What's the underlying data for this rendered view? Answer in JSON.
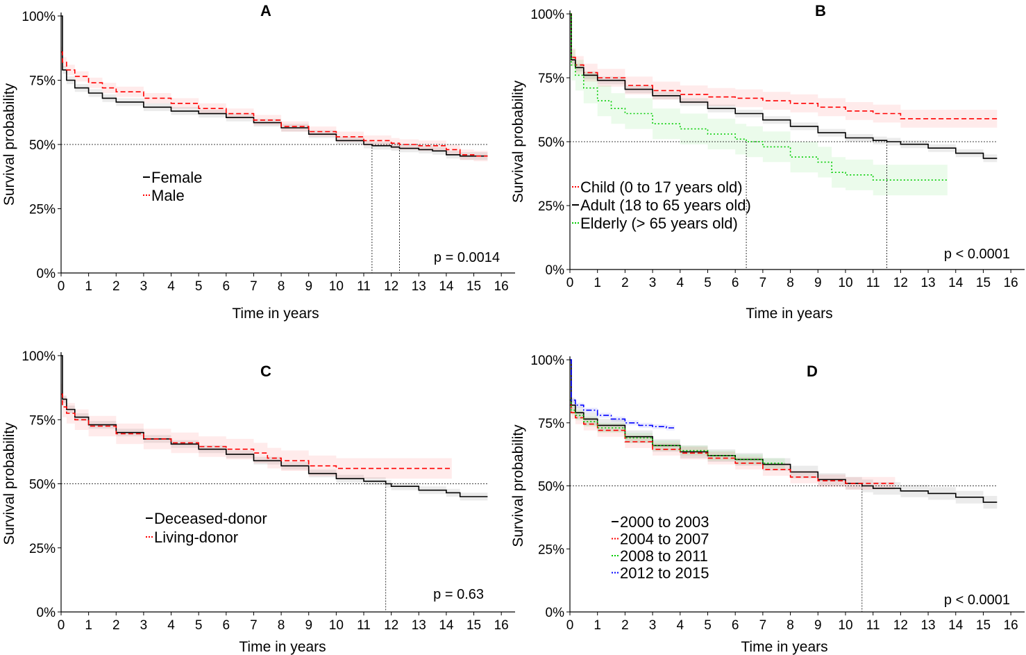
{
  "chart_data": [
    {
      "panel": "A",
      "type": "line",
      "title": "A",
      "xlabel": "Time in years",
      "ylabel": "Survival probability",
      "xlim": [
        0,
        16.5
      ],
      "ylim": [
        0,
        100
      ],
      "xticks": [
        "0",
        "1",
        "2",
        "3",
        "4",
        "5",
        "6",
        "7",
        "8",
        "9",
        "10",
        "11",
        "12",
        "13",
        "14",
        "15",
        "16"
      ],
      "yticks": [
        "0%",
        "25%",
        "50%",
        "75%",
        "100%"
      ],
      "pvalue": "p = 0.0014",
      "median_line": 50,
      "median_times": [
        11.3,
        12.3
      ],
      "series": [
        {
          "name": "Female",
          "color": "#000000",
          "style": "solid",
          "x": [
            0,
            0.05,
            0.2,
            0.5,
            1,
            1.5,
            2,
            3,
            4,
            5,
            6,
            7,
            8,
            9,
            10,
            11,
            11.3,
            12,
            12.3,
            13,
            13.5,
            14,
            14.5,
            15,
            15.5
          ],
          "y": [
            100,
            79,
            75,
            72,
            70,
            68,
            66.5,
            64.5,
            63,
            62,
            60.5,
            58.5,
            56.5,
            54,
            51.5,
            50,
            49.5,
            49,
            48.5,
            48,
            47.5,
            46,
            45.5,
            45.5,
            45.5
          ],
          "ci": 1.5
        },
        {
          "name": "Male",
          "color": "#ff0000",
          "style": "dashed",
          "x": [
            0,
            0.05,
            0.2,
            0.5,
            1,
            1.5,
            2,
            3,
            4,
            5,
            6,
            7,
            8,
            9,
            10,
            11,
            12,
            12.3,
            13,
            14,
            14.5,
            15,
            15.5
          ],
          "y": [
            86,
            82,
            79,
            76.5,
            74,
            72,
            70.5,
            68,
            66,
            64,
            62,
            59.5,
            57,
            55,
            53,
            51.5,
            50.5,
            50,
            49.5,
            48,
            46,
            45.5,
            45.5
          ],
          "ci": 2
        }
      ]
    },
    {
      "panel": "B",
      "type": "line",
      "title": "B",
      "xlabel": "Time in years",
      "ylabel": "Survival probability",
      "xlim": [
        0,
        16.5
      ],
      "ylim": [
        0,
        100
      ],
      "xticks": [
        "0",
        "1",
        "2",
        "3",
        "4",
        "5",
        "6",
        "7",
        "8",
        "9",
        "10",
        "11",
        "12",
        "13",
        "14",
        "15",
        "16"
      ],
      "yticks": [
        "0%",
        "25%",
        "50%",
        "75%",
        "100%"
      ],
      "pvalue": "p < 0.0001",
      "median_line": 50,
      "median_times": [
        6.4,
        11.5
      ],
      "series": [
        {
          "name": "Child (0 to 17 years old)",
          "color": "#ff0000",
          "style": "dashed",
          "x": [
            0,
            0.05,
            0.2,
            0.5,
            1,
            2,
            3,
            4,
            5,
            6,
            7,
            8,
            9,
            10,
            11,
            12,
            13,
            14,
            15,
            15.5
          ],
          "y": [
            100,
            83,
            80,
            77,
            75,
            72,
            70,
            68.5,
            67.5,
            67,
            66,
            65,
            63.5,
            62,
            61,
            59,
            59,
            59,
            59,
            59
          ],
          "ci": 3.5
        },
        {
          "name": "Adult (18 to 65 years old)",
          "color": "#000000",
          "style": "solid",
          "x": [
            0,
            0.05,
            0.2,
            0.5,
            1,
            2,
            3,
            4,
            5,
            6,
            7,
            8,
            9,
            10,
            11,
            11.5,
            12,
            13,
            14,
            15,
            15.5
          ],
          "y": [
            100,
            82,
            79,
            76,
            74,
            70.5,
            68,
            65.5,
            63,
            61,
            58.5,
            56,
            53.5,
            51.5,
            50.5,
            50,
            49,
            47.5,
            45.5,
            43.5,
            43.5
          ],
          "ci": 1.5
        },
        {
          "name": "Elderly (> 65 years old)",
          "color": "#00cc00",
          "style": "dotted",
          "x": [
            0,
            0.05,
            0.2,
            0.5,
            1,
            1.5,
            2,
            3,
            4,
            5,
            6,
            6.4,
            7,
            8,
            9,
            9.5,
            10,
            11,
            12,
            13,
            13.7
          ],
          "y": [
            100,
            80,
            76,
            71,
            66,
            63,
            61,
            57,
            55,
            53,
            51,
            50,
            48,
            44,
            42,
            38,
            37,
            35,
            35,
            35,
            35
          ],
          "ci": 6
        }
      ]
    },
    {
      "panel": "C",
      "type": "line",
      "title": "C",
      "xlabel": "Time in years",
      "ylabel": "Survival probability",
      "xlim": [
        0,
        16.5
      ],
      "ylim": [
        0,
        100
      ],
      "xticks": [
        "0",
        "1",
        "2",
        "3",
        "4",
        "5",
        "6",
        "7",
        "8",
        "9",
        "10",
        "11",
        "12",
        "13",
        "14",
        "15",
        "16"
      ],
      "yticks": [
        "0%",
        "25%",
        "50%",
        "75%",
        "100%"
      ],
      "pvalue": "p = 0.63",
      "median_line": 50,
      "median_times": [
        11.8
      ],
      "series": [
        {
          "name": "Deceased-donor",
          "color": "#000000",
          "style": "solid",
          "x": [
            0,
            0.05,
            0.2,
            0.5,
            1,
            2,
            3,
            4,
            5,
            6,
            7,
            8,
            9,
            10,
            11,
            11.8,
            12,
            13,
            14,
            14.5,
            15,
            15.5
          ],
          "y": [
            100,
            83,
            79,
            76,
            73,
            70,
            67.5,
            65.5,
            63.5,
            61.5,
            59,
            57,
            54,
            52,
            51,
            50,
            49,
            47.5,
            46.5,
            45,
            45,
            45
          ],
          "ci": 1.5
        },
        {
          "name": "Living-donor",
          "color": "#ff0000",
          "style": "dashed",
          "x": [
            0,
            0.05,
            0.2,
            0.5,
            1,
            2,
            3,
            4,
            5,
            6,
            7,
            7.5,
            8,
            9,
            10,
            11,
            12,
            13,
            14,
            14.2
          ],
          "y": [
            85,
            80,
            77.5,
            75,
            72.5,
            69.5,
            67.5,
            66,
            64.5,
            63.5,
            62,
            60,
            59,
            57,
            56,
            56,
            56,
            56,
            56,
            56
          ],
          "ci": 4
        }
      ]
    },
    {
      "panel": "D",
      "type": "line",
      "title": "D",
      "xlabel": "Time in years",
      "ylabel": "Survival probability",
      "xlim": [
        0,
        16.5
      ],
      "ylim": [
        0,
        100
      ],
      "xticks": [
        "0",
        "1",
        "2",
        "3",
        "4",
        "5",
        "6",
        "7",
        "8",
        "9",
        "10",
        "11",
        "12",
        "13",
        "14",
        "15",
        "16"
      ],
      "yticks": [
        "0%",
        "25%",
        "50%",
        "75%",
        "100%"
      ],
      "pvalue": "p < 0.0001",
      "median_line": 50,
      "median_times": [
        10.6
      ],
      "series": [
        {
          "name": "2000 to 2003",
          "color": "#000000",
          "style": "solid",
          "x": [
            0,
            0.05,
            0.2,
            0.5,
            1,
            2,
            3,
            4,
            5,
            6,
            7,
            8,
            9,
            10,
            10.6,
            11,
            12,
            13,
            14,
            15,
            15.5
          ],
          "y": [
            100,
            82,
            79,
            76.5,
            74,
            69.5,
            66,
            63.5,
            62,
            60.5,
            58.5,
            55.5,
            52.5,
            51,
            50,
            49,
            48,
            47,
            45.5,
            43.5,
            43.5
          ],
          "ci": 2.5
        },
        {
          "name": "2004 to 2007",
          "color": "#ff0000",
          "style": "dashed",
          "x": [
            0,
            0.05,
            0.2,
            0.5,
            1,
            2,
            3,
            4,
            5,
            6,
            7,
            8,
            9,
            10,
            11,
            11.8
          ],
          "y": [
            82,
            79,
            77,
            74.5,
            72,
            67.5,
            64.5,
            63,
            61,
            59,
            56.5,
            53.5,
            52,
            51,
            51,
            51
          ],
          "ci": 2.5
        },
        {
          "name": "2008 to 2011",
          "color": "#00cc00",
          "style": "dotted",
          "x": [
            0,
            0.05,
            0.2,
            0.5,
            1,
            2,
            3,
            4,
            5,
            6,
            7,
            7.8
          ],
          "y": [
            84,
            80,
            78,
            75.5,
            73,
            69,
            66,
            64,
            62,
            60.5,
            59,
            59
          ],
          "ci": 2
        },
        {
          "name": "2012 to 2015",
          "color": "#0000ff",
          "style": "dashdot",
          "x": [
            0,
            0.05,
            0.2,
            0.5,
            1,
            1.5,
            2,
            2.5,
            3,
            3.5,
            3.8
          ],
          "y": [
            100,
            84,
            82,
            80,
            78,
            76.5,
            75,
            74,
            73.5,
            73,
            73
          ],
          "ci": 1
        }
      ]
    }
  ]
}
